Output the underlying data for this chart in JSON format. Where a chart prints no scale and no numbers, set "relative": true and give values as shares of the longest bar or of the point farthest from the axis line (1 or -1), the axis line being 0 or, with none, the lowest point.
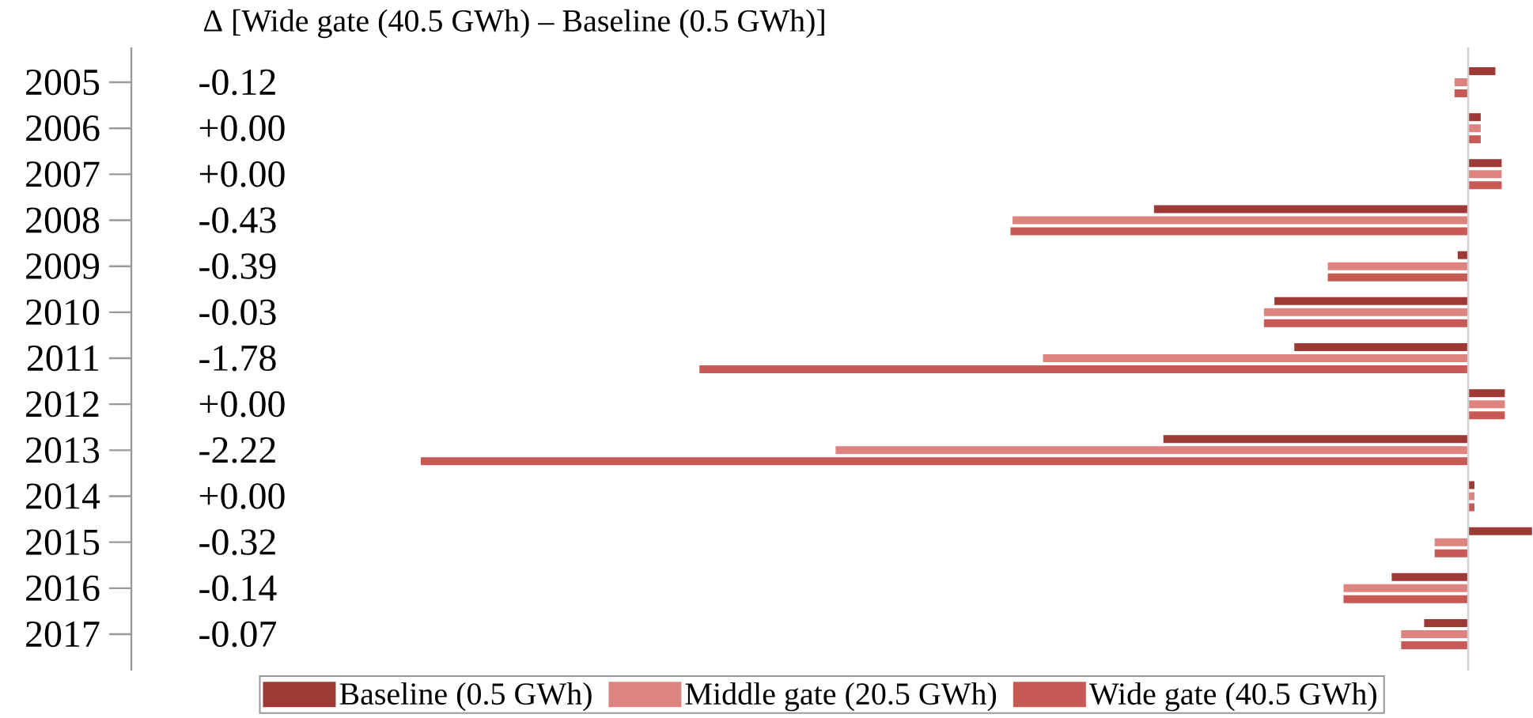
{
  "chart_data": {
    "type": "bar",
    "orientation": "horizontal",
    "relative": true,
    "title": "Δ [Wide gate (40.5 GWh) – Baseline (0.5 GWh)]",
    "categories": [
      "2005",
      "2006",
      "2007",
      "2008",
      "2009",
      "2010",
      "2011",
      "2012",
      "2013",
      "2014",
      "2015",
      "2016",
      "2017"
    ],
    "series": [
      {
        "name": "Baseline (0.5 GWh)",
        "color": "#9e3a36",
        "values": [
          0.026,
          0.012,
          0.032,
          -0.3,
          -0.01,
          -0.185,
          -0.166,
          0.035,
          -0.291,
          0.006,
          0.061,
          -0.073,
          -0.042
        ]
      },
      {
        "name": "Middle gate (20.5 GWh)",
        "color": "#dd8480",
        "values": [
          -0.013,
          0.012,
          0.032,
          -0.435,
          -0.134,
          -0.195,
          -0.406,
          0.035,
          -0.604,
          0.006,
          -0.032,
          -0.119,
          -0.064
        ]
      },
      {
        "name": "Wide gate (40.5 GWh)",
        "color": "#c75a55",
        "values": [
          -0.013,
          0.012,
          0.032,
          -0.437,
          -0.134,
          -0.195,
          -0.734,
          0.035,
          -1,
          0.006,
          -0.032,
          -0.119,
          -0.064
        ]
      }
    ],
    "annotations": [
      "-0.12",
      "+0.00",
      "+0.00",
      "-0.43",
      "-0.39",
      "-0.03",
      "-1.78",
      "+0.00",
      "-2.22",
      "+0.00",
      "-0.32",
      "-0.14",
      "-0.07"
    ],
    "legend": "bottom"
  }
}
